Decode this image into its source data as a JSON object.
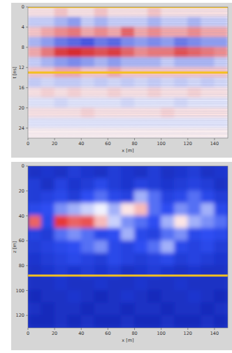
{
  "chart_data": [
    {
      "type": "heatmap",
      "x_label": "x [m]",
      "y_label": "t [ns]",
      "xlim": [
        0,
        150
      ],
      "ylim": [
        0,
        26
      ],
      "xticks": [
        0,
        20,
        40,
        60,
        80,
        100,
        120,
        140
      ],
      "yticks": [
        0,
        4,
        8,
        12,
        16,
        20,
        24
      ],
      "color_range": [
        -1,
        1
      ],
      "reference_lines": [
        0,
        13
      ],
      "x": [
        5,
        15,
        25,
        35,
        45,
        55,
        65,
        75,
        85,
        95,
        105,
        115,
        125,
        135,
        145
      ],
      "y": [
        1,
        3,
        5,
        7,
        9,
        11,
        13,
        15,
        17,
        19,
        21,
        23,
        25
      ],
      "values": [
        [
          0.1,
          0.1,
          0.2,
          0.1,
          0.1,
          0.2,
          0.1,
          0.1,
          0.1,
          0.2,
          0.1,
          0.1,
          0.1,
          0.1,
          0.1
        ],
        [
          -0.2,
          -0.2,
          -0.3,
          -0.4,
          -0.2,
          -0.3,
          -0.2,
          -0.2,
          -0.2,
          -0.3,
          -0.2,
          -0.2,
          -0.3,
          -0.2,
          -0.2
        ],
        [
          0.2,
          0.3,
          0.4,
          0.5,
          0.3,
          0.4,
          0.3,
          0.6,
          0.3,
          0.4,
          0.3,
          0.3,
          0.4,
          0.3,
          0.3
        ],
        [
          -0.3,
          -0.4,
          -0.6,
          -0.7,
          -0.8,
          -0.6,
          -0.7,
          -0.5,
          -0.4,
          -0.5,
          -0.4,
          -0.6,
          -0.5,
          -0.4,
          -0.4
        ],
        [
          0.3,
          0.5,
          0.8,
          0.9,
          0.8,
          0.7,
          0.8,
          0.6,
          0.4,
          0.5,
          0.5,
          0.7,
          0.6,
          0.5,
          0.4
        ],
        [
          -0.2,
          -0.3,
          -0.4,
          -0.5,
          -0.4,
          -0.3,
          -0.4,
          -0.3,
          -0.3,
          -0.3,
          -0.2,
          -0.3,
          -0.3,
          -0.3,
          -0.2
        ],
        [
          0.2,
          0.2,
          0.3,
          0.3,
          0.2,
          0.2,
          0.3,
          0.2,
          0.2,
          0.2,
          0.2,
          0.2,
          0.2,
          0.2,
          0.2
        ],
        [
          -0.2,
          -0.15,
          -0.2,
          -0.2,
          -0.15,
          -0.2,
          -0.15,
          -0.2,
          -0.15,
          -0.2,
          -0.15,
          -0.2,
          -0.15,
          -0.2,
          -0.15
        ],
        [
          0.1,
          0.15,
          0.1,
          0.15,
          0.1,
          0.1,
          0.15,
          0.1,
          0.1,
          0.15,
          0.1,
          0.1,
          0.15,
          0.1,
          0.1
        ],
        [
          -0.1,
          -0.1,
          -0.15,
          -0.1,
          -0.1,
          -0.1,
          -0.1,
          -0.15,
          -0.1,
          -0.1,
          -0.1,
          -0.15,
          -0.1,
          -0.1,
          -0.1
        ],
        [
          0.1,
          0.1,
          0.1,
          0.1,
          0.15,
          0.1,
          0.1,
          0.1,
          0.1,
          0.1,
          0.15,
          0.1,
          0.1,
          0.1,
          0.1
        ],
        [
          -0.1,
          -0.1,
          -0.1,
          -0.1,
          -0.1,
          -0.1,
          -0.1,
          -0.1,
          -0.1,
          -0.1,
          -0.1,
          -0.1,
          -0.1,
          -0.1,
          -0.1
        ],
        [
          0.05,
          0.05,
          0.05,
          0.05,
          0.05,
          0.05,
          0.05,
          0.05,
          0.05,
          0.05,
          0.05,
          0.05,
          0.05,
          0.05,
          0.05
        ]
      ]
    },
    {
      "type": "heatmap",
      "x_label": "x [m]",
      "y_label": "z [m]",
      "xlim": [
        0,
        150
      ],
      "ylim": [
        0,
        130
      ],
      "xticks": [
        0,
        20,
        40,
        60,
        80,
        100,
        120,
        140
      ],
      "yticks": [
        0,
        20,
        40,
        60,
        80,
        100,
        120
      ],
      "color_range": [
        0,
        1
      ],
      "reference_lines": [
        88
      ],
      "x": [
        5,
        15,
        25,
        35,
        45,
        55,
        65,
        75,
        85,
        95,
        105,
        115,
        125,
        135,
        145
      ],
      "y": [
        5,
        15,
        25,
        35,
        45,
        55,
        65,
        75,
        85,
        95,
        105,
        115,
        125
      ],
      "values": [
        [
          0.2,
          0.25,
          0.2,
          0.3,
          0.25,
          0.2,
          0.3,
          0.25,
          0.2,
          0.3,
          0.2,
          0.25,
          0.3,
          0.2,
          0.25
        ],
        [
          0.3,
          0.2,
          0.35,
          0.25,
          0.3,
          0.4,
          0.3,
          0.25,
          0.35,
          0.3,
          0.25,
          0.3,
          0.35,
          0.3,
          0.2
        ],
        [
          0.3,
          0.35,
          0.4,
          0.3,
          0.45,
          0.5,
          0.4,
          0.35,
          0.6,
          0.5,
          0.35,
          0.4,
          0.5,
          0.4,
          0.3
        ],
        [
          0.4,
          0.45,
          0.55,
          0.6,
          0.65,
          0.7,
          0.6,
          0.75,
          0.8,
          0.5,
          0.45,
          0.55,
          0.5,
          0.6,
          0.4
        ],
        [
          0.9,
          0.4,
          0.95,
          0.9,
          0.92,
          0.8,
          0.65,
          0.55,
          0.5,
          0.45,
          0.6,
          0.75,
          0.6,
          0.55,
          0.5
        ],
        [
          0.35,
          0.3,
          0.5,
          0.55,
          0.5,
          0.4,
          0.45,
          0.6,
          0.4,
          0.35,
          0.5,
          0.55,
          0.4,
          0.45,
          0.4
        ],
        [
          0.3,
          0.35,
          0.4,
          0.45,
          0.5,
          0.55,
          0.4,
          0.35,
          0.45,
          0.5,
          0.6,
          0.4,
          0.35,
          0.4,
          0.3
        ],
        [
          0.25,
          0.3,
          0.35,
          0.4,
          0.35,
          0.3,
          0.4,
          0.35,
          0.3,
          0.35,
          0.4,
          0.3,
          0.35,
          0.3,
          0.25
        ],
        [
          0.2,
          0.25,
          0.3,
          0.25,
          0.3,
          0.25,
          0.3,
          0.2,
          0.25,
          0.3,
          0.25,
          0.2,
          0.25,
          0.2,
          0.2
        ],
        [
          0.2,
          0.2,
          0.25,
          0.2,
          0.2,
          0.25,
          0.2,
          0.2,
          0.25,
          0.2,
          0.2,
          0.25,
          0.2,
          0.2,
          0.2
        ],
        [
          0.15,
          0.2,
          0.2,
          0.25,
          0.2,
          0.15,
          0.2,
          0.25,
          0.2,
          0.15,
          0.2,
          0.2,
          0.25,
          0.2,
          0.15
        ],
        [
          0.2,
          0.15,
          0.2,
          0.2,
          0.15,
          0.2,
          0.2,
          0.15,
          0.2,
          0.2,
          0.15,
          0.2,
          0.2,
          0.15,
          0.2
        ],
        [
          0.15,
          0.15,
          0.2,
          0.15,
          0.2,
          0.15,
          0.15,
          0.2,
          0.15,
          0.15,
          0.2,
          0.15,
          0.15,
          0.2,
          0.15
        ]
      ]
    }
  ]
}
